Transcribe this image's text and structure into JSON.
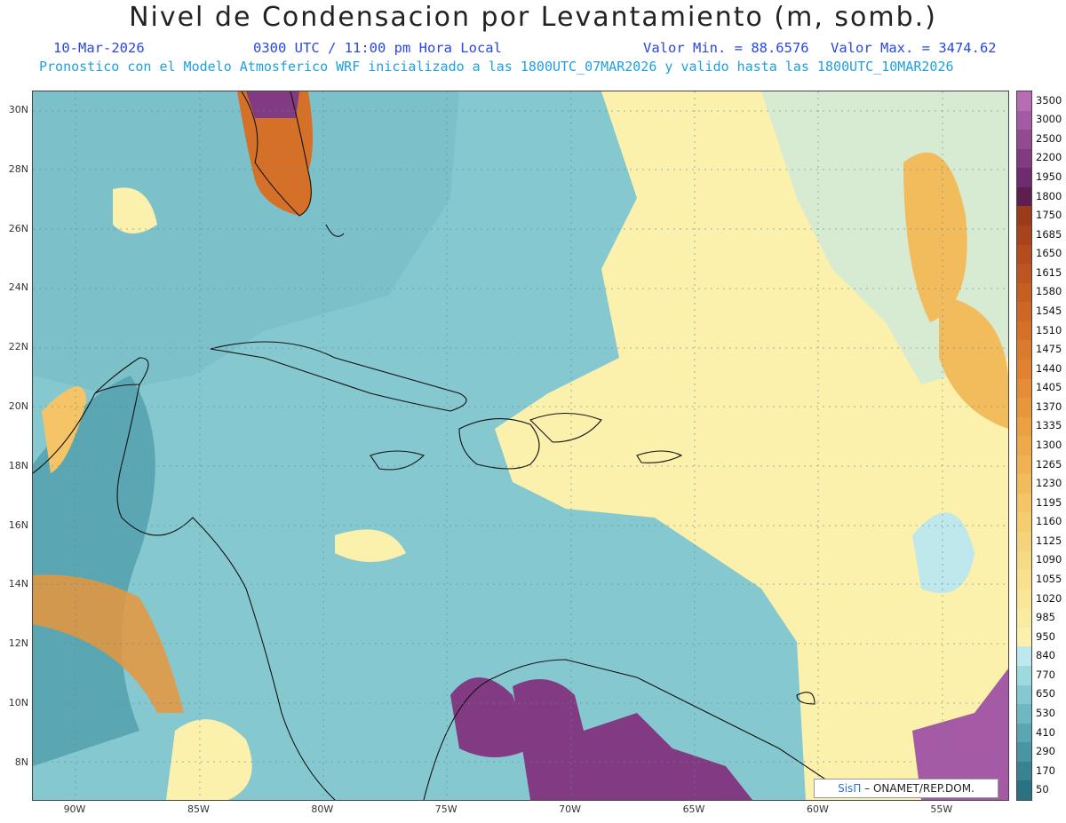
{
  "header": {
    "title": "Nivel de Condensacion por Levantamiento (m, somb.)",
    "date": "10-Mar-2026",
    "time": "0300 UTC / 11:00 pm Hora Local",
    "min_label": "Valor Min. = 88.6576",
    "max_label": "Valor Max. = 3474.62",
    "forecast": "Pronostico con el Modelo Atmosferico WRF inicializado a las 1800UTC_07MAR2026 y valido hasta las  1800UTC_10MAR2026"
  },
  "axes": {
    "lat_labels": [
      "30N",
      "28N",
      "26N",
      "24N",
      "22N",
      "20N",
      "18N",
      "16N",
      "14N",
      "12N",
      "10N",
      "8N"
    ],
    "lon_labels": [
      "90W",
      "85W",
      "80W",
      "75W",
      "70W",
      "65W",
      "60W",
      "55W"
    ]
  },
  "colorbar": {
    "labels": [
      "3500",
      "3000",
      "2500",
      "2200",
      "1950",
      "1800",
      "1750",
      "1685",
      "1650",
      "1615",
      "1580",
      "1545",
      "1510",
      "1475",
      "1440",
      "1405",
      "1370",
      "1335",
      "1300",
      "1265",
      "1230",
      "1195",
      "1160",
      "1125",
      "1090",
      "1055",
      "1020",
      "985",
      "950",
      "840",
      "770",
      "650",
      "530",
      "410",
      "290",
      "170",
      "50"
    ],
    "colors": [
      "#b86cb6",
      "#a45aa4",
      "#934a93",
      "#823b82",
      "#6e2b6e",
      "#5e1f4e",
      "#9c3b1a",
      "#aa431c",
      "#b44c1e",
      "#be5520",
      "#c65e22",
      "#ce6725",
      "#d57029",
      "#db792d",
      "#e08232",
      "#e48c37",
      "#e8963c",
      "#ec9f43",
      "#eea94b",
      "#f0b253",
      "#f2bb5c",
      "#f4c466",
      "#f5cc70",
      "#f6d37a",
      "#f7da85",
      "#f8e08f",
      "#f9e699",
      "#faeba2",
      "#fbf0ac",
      "#bfe8ec",
      "#9ed9df",
      "#86c8d0",
      "#6fb8c2",
      "#5aa7b3",
      "#4895a3",
      "#378392",
      "#2a7282"
    ]
  },
  "map": {
    "background_color": "#7cc1c9"
  },
  "credit": {
    "brand": "SisΠ",
    "text": "– ONAMET/REP.DOM."
  }
}
